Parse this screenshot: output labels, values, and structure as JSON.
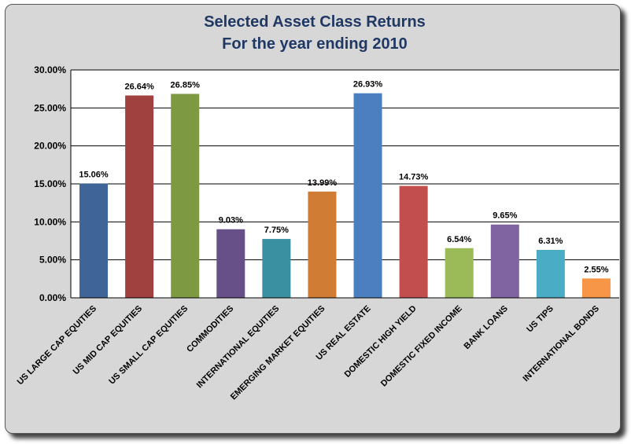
{
  "chart_data": {
    "type": "bar",
    "title": "Selected Asset Class Returns",
    "subtitle": "For the year ending 2010",
    "categories": [
      "US LARGE CAP EQUITIES",
      "US MID CAP EQUITIES",
      "US SMALL CAP EQUITIES",
      "COMMODITIES",
      "INTERNATIONAL EQUITIES",
      "EMERGING MARKET EQUITIES",
      "US REAL ESTATE",
      "DOMESTIC HIGH YIELD",
      "DOMESTIC FIXED INCOME",
      "BANK LOANS",
      "US TIPS",
      "INTERNATIONAL BONDS"
    ],
    "values": [
      15.06,
      26.64,
      26.85,
      9.03,
      7.75,
      13.99,
      26.93,
      14.73,
      6.54,
      9.65,
      6.31,
      2.55
    ],
    "value_labels": [
      "15.06%",
      "26.64%",
      "26.85%",
      "9.03%",
      "7.75%",
      "13.99%",
      "26.93%",
      "14.73%",
      "6.54%",
      "9.65%",
      "6.31%",
      "2.55%"
    ],
    "colors": [
      "#3f6598",
      "#a04140",
      "#7d9a43",
      "#674f88",
      "#3a8fa1",
      "#d17c35",
      "#4b7fc0",
      "#c24f4d",
      "#9bbb59",
      "#8064a2",
      "#4bacc6",
      "#f79646"
    ],
    "ylim": [
      0,
      30
    ],
    "yticks": [
      0,
      5,
      10,
      15,
      20,
      25,
      30
    ],
    "ytick_labels": [
      "0.00%",
      "5.00%",
      "10.00%",
      "15.00%",
      "20.00%",
      "25.00%",
      "30.00%"
    ],
    "xlabel": "",
    "ylabel": "",
    "grid": true,
    "legend": "none",
    "background": "#d7d7d7",
    "plot_background": "#ffffff"
  }
}
